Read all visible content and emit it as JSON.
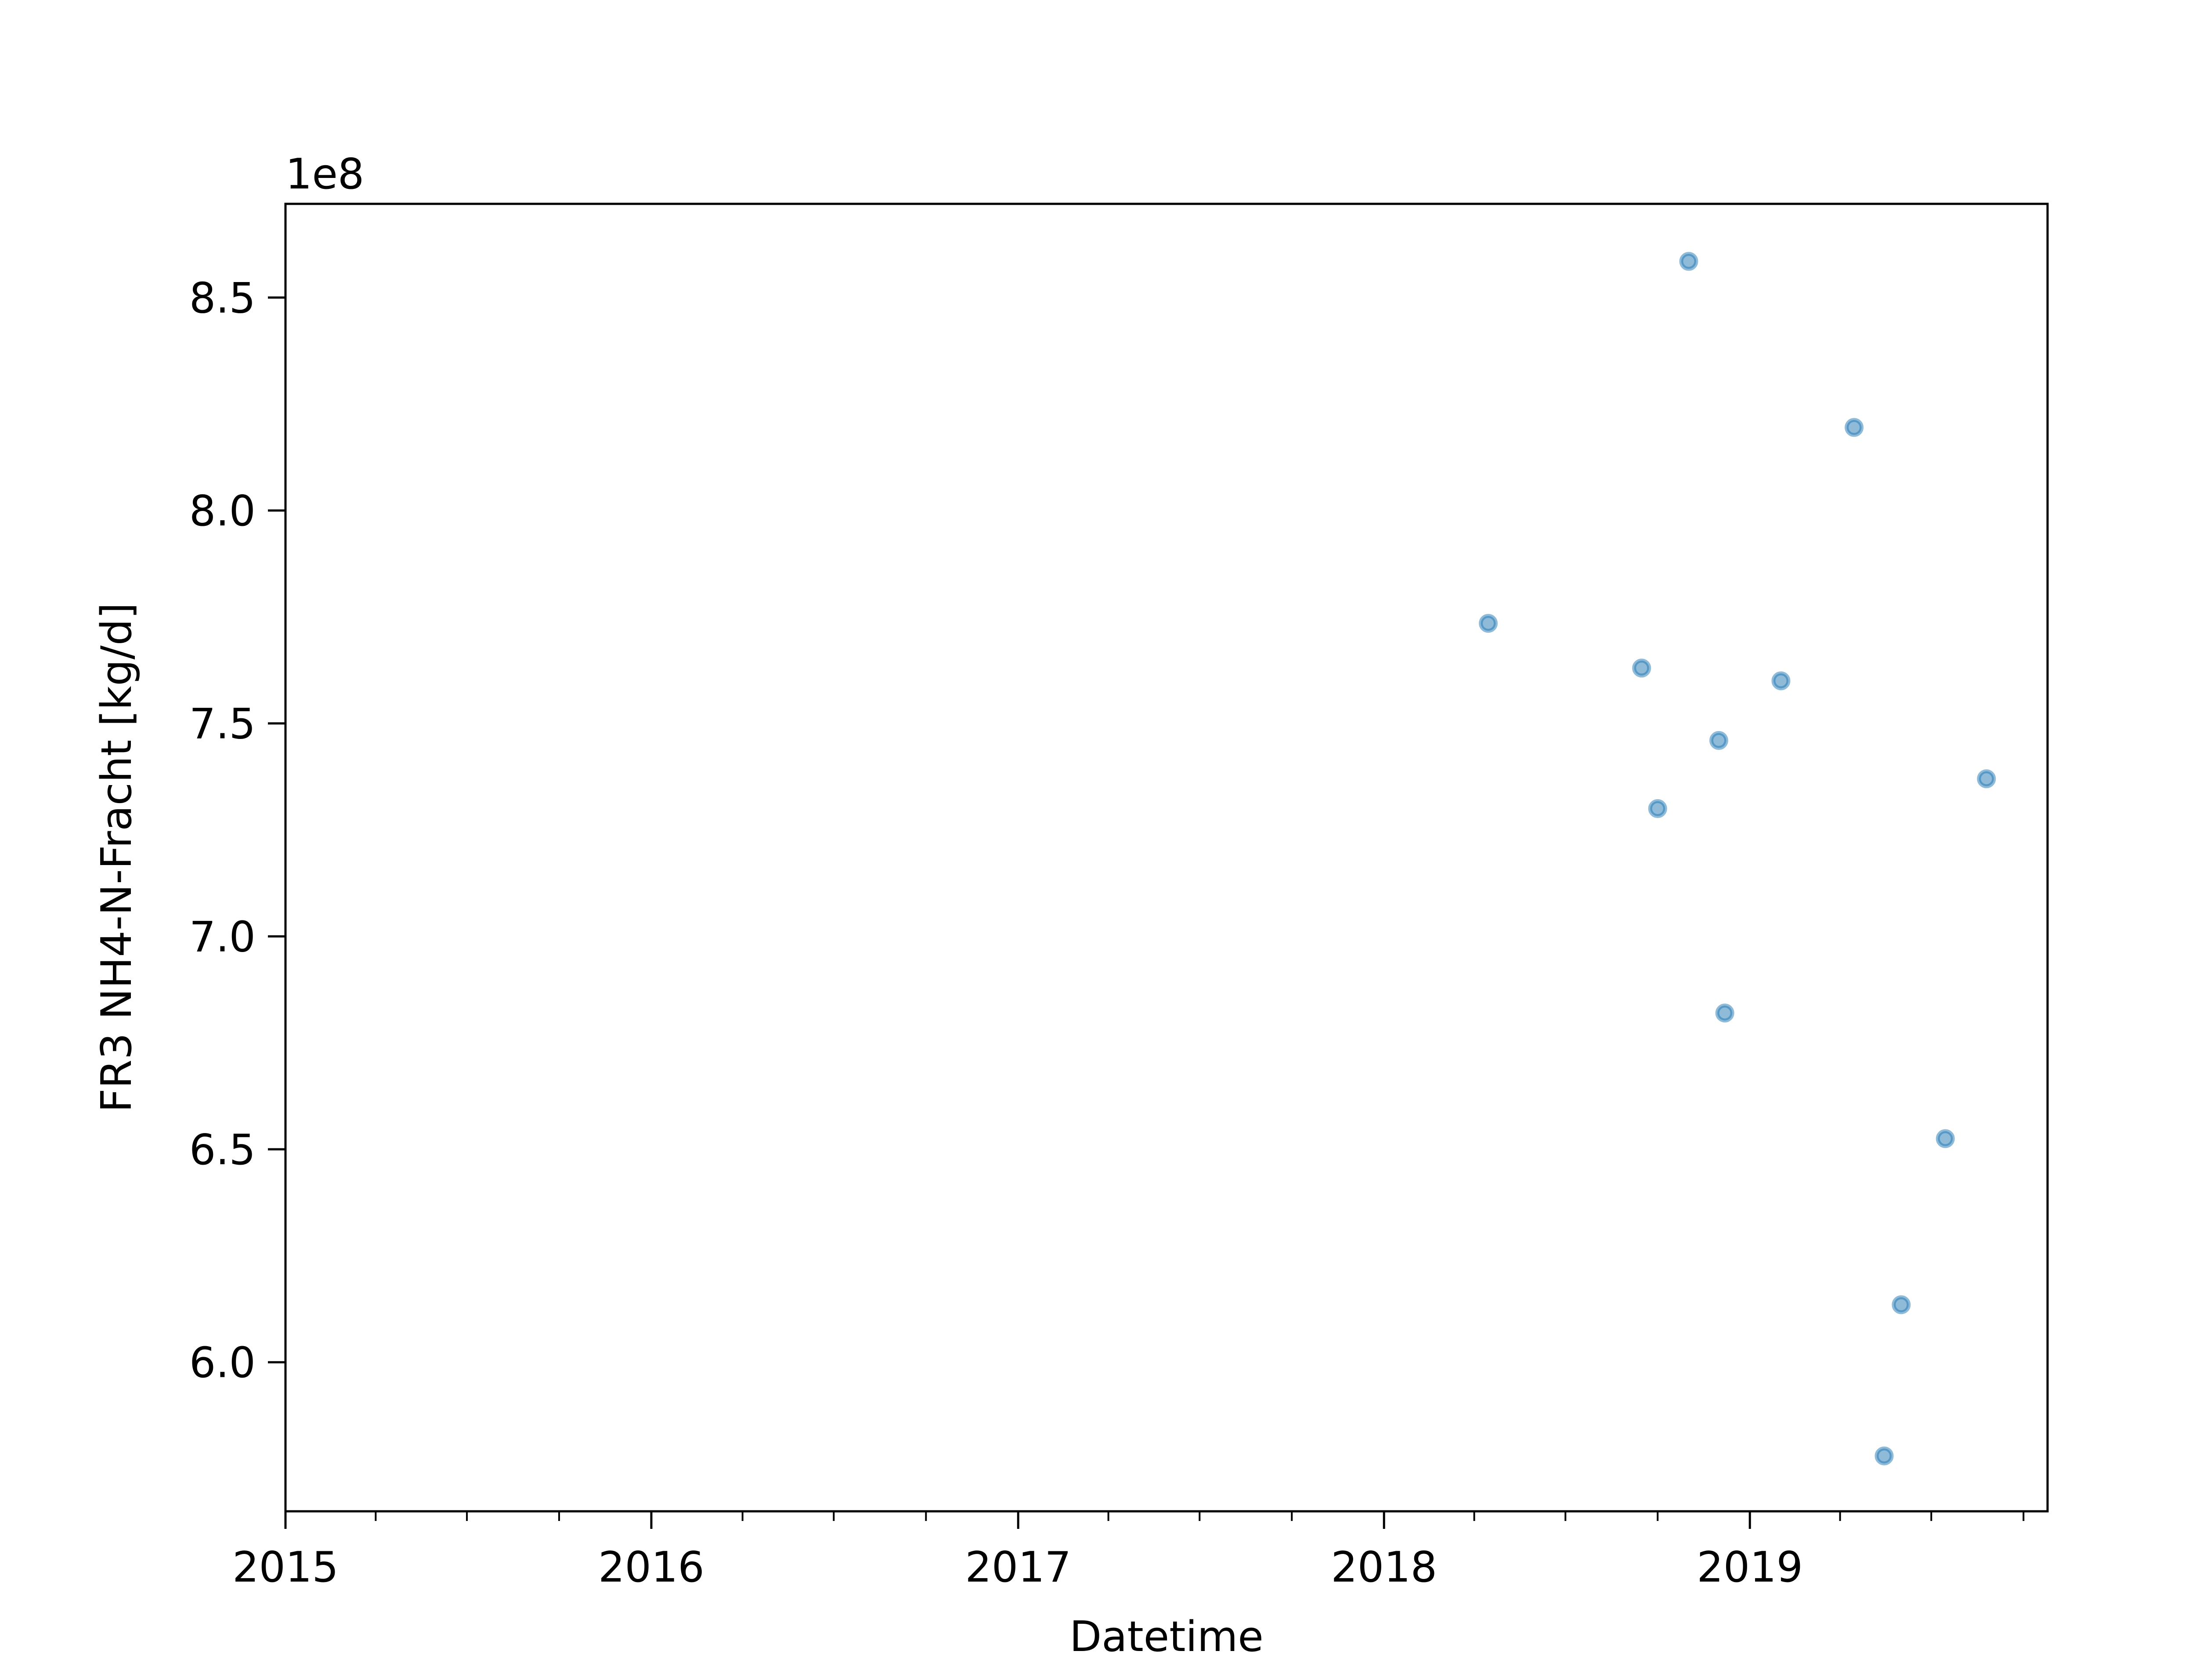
{
  "chart_data": {
    "type": "scatter",
    "title": "",
    "xlabel": "Datetime",
    "ylabel": "FR3 NH4-N-Fracht [kg/d]",
    "y_offset_label": "1e8",
    "x_tick_labels": [
      "2015",
      "2016",
      "2017",
      "2018",
      "2019"
    ],
    "y_tick_labels": [
      "6.0",
      "6.5",
      "7.0",
      "7.5",
      "8.0",
      "8.5"
    ],
    "xlim": [
      "2015-01-01",
      "2019-10-25"
    ],
    "ylim": [
      5.65,
      8.72
    ],
    "grid": false,
    "marker_color": "#1f77b4",
    "points": [
      {
        "x": "2018-04-15",
        "y": 7.735
      },
      {
        "x": "2018-09-15",
        "y": 7.63
      },
      {
        "x": "2018-10-01",
        "y": 7.3
      },
      {
        "x": "2018-11-01",
        "y": 8.585
      },
      {
        "x": "2018-12-01",
        "y": 7.46
      },
      {
        "x": "2018-12-07",
        "y": 6.82
      },
      {
        "x": "2019-02-01",
        "y": 7.6
      },
      {
        "x": "2019-04-15",
        "y": 8.195
      },
      {
        "x": "2019-05-15",
        "y": 5.78
      },
      {
        "x": "2019-06-01",
        "y": 6.135
      },
      {
        "x": "2019-07-15",
        "y": 6.525
      },
      {
        "x": "2019-08-25",
        "y": 7.37
      }
    ]
  }
}
